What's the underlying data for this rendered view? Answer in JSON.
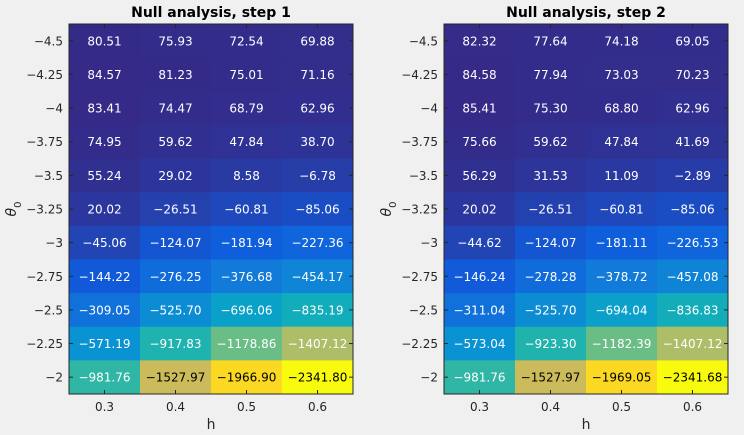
{
  "figure": {
    "background": "#f0f0f0"
  },
  "chart_data": [
    {
      "type": "heatmap",
      "title": "Null analysis, step 1",
      "xlabel": "h",
      "ylabel": "θ0",
      "x": [
        "0.3",
        "0.4",
        "0.5",
        "0.6"
      ],
      "y": [
        "-4.5",
        "-4.25",
        "-4",
        "-3.75",
        "-3.5",
        "-3.25",
        "-3",
        "-2.75",
        "-2.5",
        "-2.25",
        "-2"
      ],
      "values": [
        [
          "80.51",
          "75.93",
          "72.54",
          "69.88"
        ],
        [
          "84.57",
          "81.23",
          "75.01",
          "71.16"
        ],
        [
          "83.41",
          "74.47",
          "68.79",
          "62.96"
        ],
        [
          "74.95",
          "59.62",
          "47.84",
          "38.70"
        ],
        [
          "55.24",
          "29.02",
          "8.58",
          "-6.78"
        ],
        [
          "20.02",
          "-26.51",
          "-60.81",
          "-85.06"
        ],
        [
          "-45.06",
          "-124.07",
          "-181.94",
          "-227.36"
        ],
        [
          "-144.22",
          "-276.25",
          "-376.68",
          "-454.17"
        ],
        [
          "-309.05",
          "-525.70",
          "-696.06",
          "-835.19"
        ],
        [
          "-571.19",
          "-917.83",
          "-1178.86",
          "-1407.12"
        ],
        [
          "-981.76",
          "-1527.97",
          "-1966.90",
          "-2341.80"
        ]
      ],
      "colormap": "parula"
    },
    {
      "type": "heatmap",
      "title": "Null analysis, step 2",
      "xlabel": "h",
      "ylabel": "θ0",
      "x": [
        "0.3",
        "0.4",
        "0.5",
        "0.6"
      ],
      "y": [
        "-4.5",
        "-4.25",
        "-4",
        "-3.75",
        "-3.5",
        "-3.25",
        "-3",
        "-2.75",
        "-2.5",
        "-2.25",
        "-2"
      ],
      "values": [
        [
          "82.32",
          "77.64",
          "74.18",
          "69.05"
        ],
        [
          "84.58",
          "77.94",
          "73.03",
          "70.23"
        ],
        [
          "85.41",
          "75.30",
          "68.80",
          "62.96"
        ],
        [
          "75.66",
          "59.62",
          "47.84",
          "41.69"
        ],
        [
          "56.29",
          "31.53",
          "11.09",
          "-2.89"
        ],
        [
          "20.02",
          "-26.51",
          "-60.81",
          "-85.06"
        ],
        [
          "-44.62",
          "-124.07",
          "-181.11",
          "-226.53"
        ],
        [
          "-146.24",
          "-278.28",
          "-378.72",
          "-457.08"
        ],
        [
          "-311.04",
          "-525.70",
          "-694.04",
          "-836.83"
        ],
        [
          "-573.04",
          "-923.30",
          "-1182.39",
          "-1407.12"
        ],
        [
          "-981.76",
          "-1527.97",
          "-1969.05",
          "-2341.68"
        ]
      ],
      "colormap": "parula"
    }
  ]
}
